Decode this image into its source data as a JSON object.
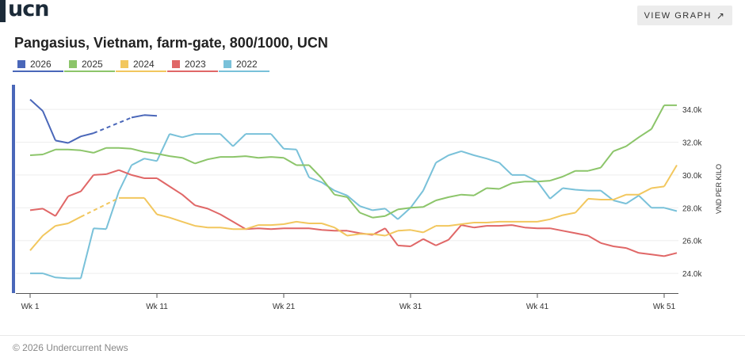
{
  "brand": {
    "logo": "ucn"
  },
  "header": {
    "view_graph_label": "VIEW GRAPH",
    "view_graph_icon": "arrow-up-right-icon"
  },
  "chart_data": {
    "type": "line",
    "title": "Pangasius, Vietnam, farm-gate, 800/1000, UCN",
    "ylabel": "VND PER KILO",
    "xlabel": "",
    "x": [
      1,
      2,
      3,
      4,
      5,
      6,
      7,
      8,
      9,
      10,
      11,
      12,
      13,
      14,
      15,
      16,
      17,
      18,
      19,
      20,
      21,
      22,
      23,
      24,
      25,
      26,
      27,
      28,
      29,
      30,
      31,
      32,
      33,
      34,
      35,
      36,
      37,
      38,
      39,
      40,
      41,
      42,
      43,
      44,
      45,
      46,
      47,
      48,
      49,
      50,
      51,
      52
    ],
    "x_ticks": [
      1,
      11,
      21,
      31,
      41,
      51
    ],
    "x_tick_labels": [
      "Wk 1",
      "Wk 11",
      "Wk 21",
      "Wk 31",
      "Wk 41",
      "Wk 51"
    ],
    "y_ticks": [
      24000,
      26000,
      28000,
      30000,
      32000,
      34000
    ],
    "y_tick_labels": [
      "24.0k",
      "26.0k",
      "28.0k",
      "30.0k",
      "32.0k",
      "34.0k"
    ],
    "ylim": [
      22800,
      35500
    ],
    "xlim": [
      1,
      53
    ],
    "grid": true,
    "legend_position": "top-left",
    "series": [
      {
        "name": "2026",
        "color": "#4a67b9",
        "values": [
          34600,
          33900,
          32100,
          31950,
          32350,
          32550,
          null,
          null,
          33500,
          33650,
          33600,
          null,
          null,
          null,
          null,
          null,
          null,
          null,
          null,
          null,
          null,
          null,
          null,
          null,
          null,
          null,
          null,
          null,
          null,
          null,
          null,
          null,
          null,
          null,
          null,
          null,
          null,
          null,
          null,
          null,
          null,
          null,
          null,
          null,
          null,
          null,
          null,
          null,
          null,
          null,
          null,
          null
        ]
      },
      {
        "name": "2025",
        "color": "#8cc56a",
        "values": [
          31200,
          31250,
          31550,
          31550,
          31500,
          31350,
          31650,
          31650,
          31600,
          31400,
          31300,
          31150,
          31050,
          30700,
          30950,
          31100,
          31100,
          31150,
          31050,
          31100,
          31050,
          30600,
          30600,
          29800,
          28800,
          28650,
          27700,
          27400,
          27500,
          27900,
          28000,
          28050,
          28450,
          28650,
          28800,
          28750,
          29200,
          29150,
          29500,
          29600,
          29600,
          29650,
          29900,
          30250,
          30250,
          30450,
          31450,
          31750,
          32300,
          32800,
          34250,
          34250
        ]
      },
      {
        "name": "2024",
        "color": "#f2c75e",
        "values": [
          25400,
          26300,
          26900,
          27050,
          27450,
          null,
          null,
          28600,
          28600,
          28600,
          27600,
          27400,
          27150,
          26900,
          26800,
          26800,
          26700,
          26700,
          26950,
          26950,
          27000,
          27150,
          27050,
          27050,
          26800,
          26300,
          26400,
          26400,
          26300,
          26600,
          26650,
          26500,
          26900,
          26900,
          27000,
          27100,
          27100,
          27150,
          27150,
          27150,
          27150,
          27300,
          27550,
          27700,
          28550,
          28500,
          28500,
          28800,
          28800,
          29200,
          29300,
          30600
        ]
      },
      {
        "name": "2023",
        "color": "#e06767",
        "values": [
          27850,
          27950,
          27500,
          28700,
          29000,
          30000,
          30050,
          30300,
          30000,
          29800,
          29800,
          29300,
          28800,
          28150,
          27950,
          27600,
          27150,
          26700,
          26750,
          26700,
          26750,
          26750,
          26750,
          26650,
          26600,
          26600,
          26450,
          26350,
          26750,
          25700,
          25650,
          26100,
          25700,
          26050,
          26950,
          26800,
          26900,
          26900,
          26950,
          26800,
          26750,
          26750,
          26600,
          26450,
          26300,
          25850,
          25650,
          25550,
          25250,
          25150,
          25050,
          25250
        ]
      },
      {
        "name": "2022",
        "color": "#79c1d9",
        "values": [
          24000,
          24000,
          23750,
          23700,
          23700,
          26750,
          26700,
          29000,
          30600,
          31000,
          30850,
          32500,
          32300,
          32500,
          32500,
          32500,
          31750,
          32500,
          32500,
          32500,
          31600,
          31550,
          29850,
          29550,
          29050,
          28750,
          28100,
          27850,
          27950,
          27300,
          28000,
          29050,
          30750,
          31200,
          31450,
          31200,
          31000,
          30750,
          30000,
          30000,
          29600,
          28550,
          29200,
          29100,
          29050,
          29050,
          28450,
          28250,
          28750,
          28000,
          28000,
          27800
        ]
      }
    ]
  },
  "footer": {
    "copyright": "© 2026 Undercurrent News"
  }
}
